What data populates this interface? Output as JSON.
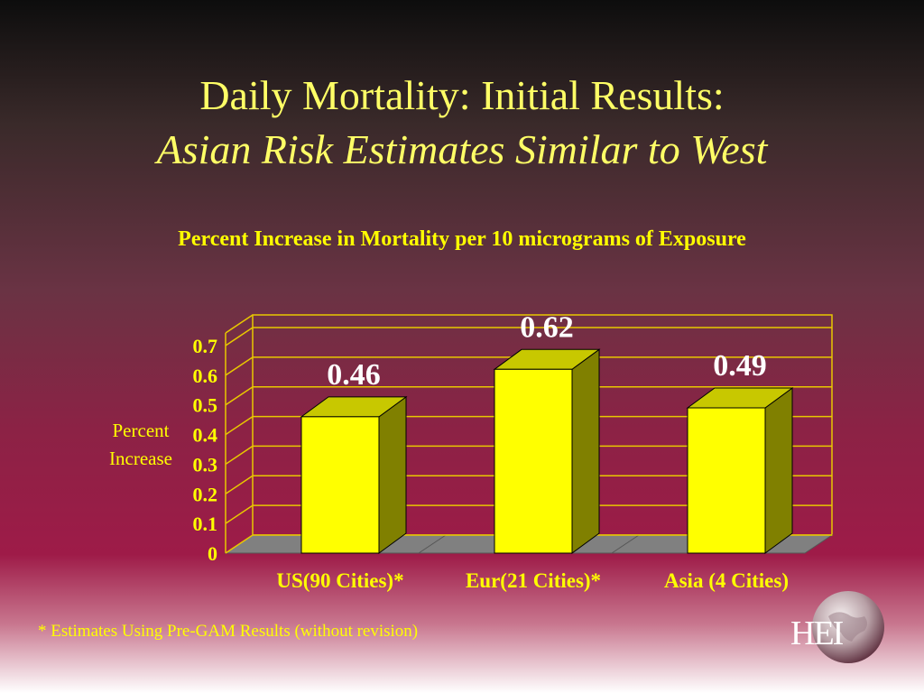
{
  "slide": {
    "title_line1": "Daily Mortality: Initial Results:",
    "title_line2": "Asian Risk Estimates Similar to West",
    "footnote": "* Estimates Using Pre-GAM Results (without revision)",
    "logo_text": "HEI"
  },
  "chart_data": {
    "type": "bar",
    "title": "Percent Increase in Mortality per 10 micrograms of Exposure",
    "ylabel": "Percent Increase",
    "xlabel": "",
    "categories": [
      "US(90 Cities)*",
      "Eur(21 Cities)*",
      "Asia (4 Cities)"
    ],
    "values": [
      0.46,
      0.62,
      0.49
    ],
    "data_labels": [
      "0.46",
      "0.62",
      "0.49"
    ],
    "ylim": [
      0,
      0.7
    ],
    "yticks": [
      0,
      0.1,
      0.2,
      0.3,
      0.4,
      0.5,
      0.6,
      0.7
    ],
    "ytick_labels": [
      "0",
      "0.1",
      "0.2",
      "0.3",
      "0.4",
      "0.5",
      "0.6",
      "0.7"
    ],
    "grid": true,
    "legend": "none",
    "bar_color": "#ffff00",
    "bar_side_color": "#808000",
    "bar_top_color": "#c8c800",
    "floor_color": "#808080",
    "grid_color": "#e8c800",
    "text_color": "#ffff00",
    "data_label_color": "#ffffff"
  }
}
